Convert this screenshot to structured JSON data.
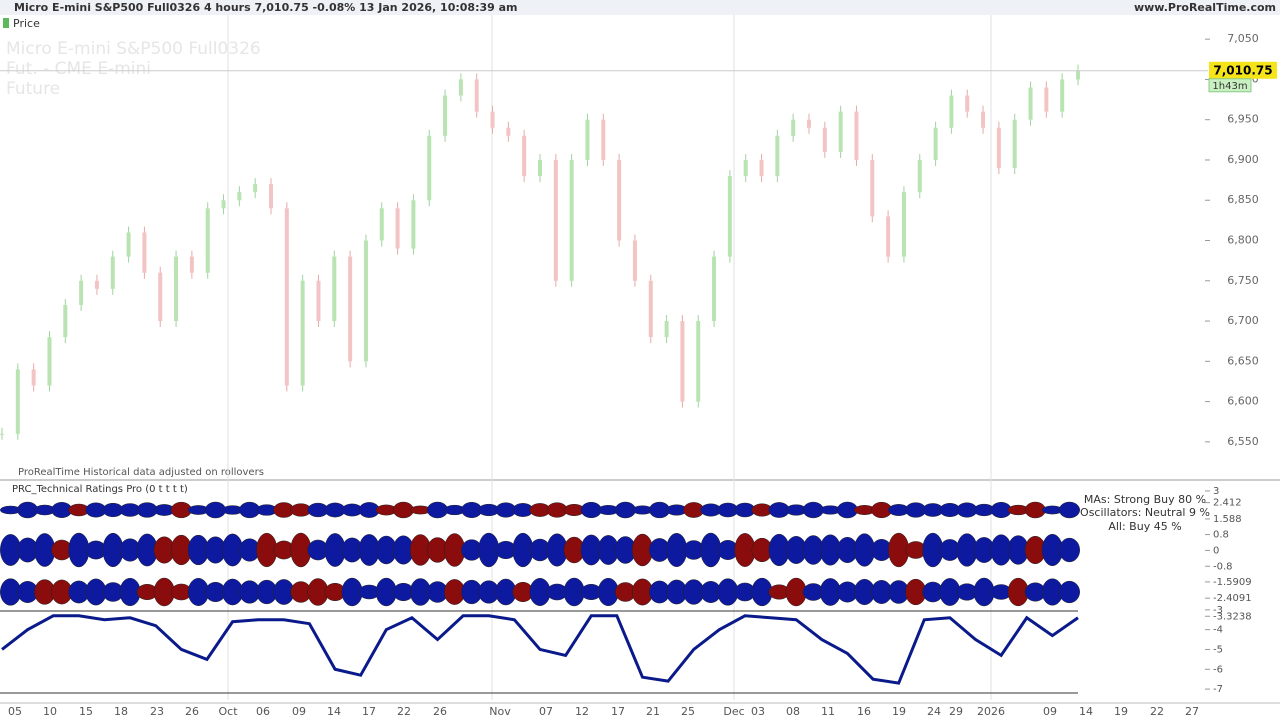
{
  "header": {
    "title": "Micro E-mini S&P500 Full0326 4 hours 7,010.75 -0.08% 13 Jan 2026, 10:08:39 am",
    "site": "www.ProRealTime.com"
  },
  "price_panel": {
    "legend": "Price",
    "watermark": [
      "Micro E-mini S&P500 Full0326",
      "Fut. - CME E-mini",
      "Future"
    ],
    "last_price": {
      "value": 7010.75,
      "label": "7,010.75"
    },
    "countdown": "1h43m",
    "note": "ProRealTime Historical data adjusted on rollovers",
    "ylim": [
      6525,
      7080
    ],
    "yticks": [
      {
        "value": 7050,
        "label": "7,050"
      },
      {
        "value": 7000,
        "label": "7,000"
      },
      {
        "value": 6950,
        "label": "6,950"
      },
      {
        "value": 6900,
        "label": "6,900"
      },
      {
        "value": 6850,
        "label": "6,850"
      },
      {
        "value": 6800,
        "label": "6,800"
      },
      {
        "value": 6750,
        "label": "6,750"
      },
      {
        "value": 6700,
        "label": "6,700"
      },
      {
        "value": 6650,
        "label": "6,650"
      },
      {
        "value": 6600,
        "label": "6,600"
      },
      {
        "value": 6550,
        "label": "6,550"
      }
    ],
    "values": [
      6560,
      6640,
      6620,
      6680,
      6720,
      6750,
      6740,
      6780,
      6810,
      6760,
      6700,
      6780,
      6760,
      6840,
      6850,
      6860,
      6870,
      6840,
      6620,
      6750,
      6700,
      6780,
      6650,
      6800,
      6840,
      6790,
      6850,
      6930,
      6980,
      7000,
      6960,
      6940,
      6930,
      6880,
      6900,
      6750,
      6900,
      6950,
      6900,
      6800,
      6750,
      6680,
      6700,
      6600,
      6700,
      6780,
      6880,
      6900,
      6880,
      6930,
      6950,
      6940,
      6910,
      6960,
      6900,
      6830,
      6780,
      6860,
      6900,
      6940,
      6980,
      6960,
      6940,
      6890,
      6950,
      6990,
      6960,
      7000,
      7011
    ]
  },
  "indicator_panel": {
    "title": "PRC_Technical Ratings Pro (0 t t t t)",
    "summary": [
      "MAs: Strong Buy 80 %",
      "Oscillators: Neutral 9 %",
      "All: Buy 45 %"
    ],
    "ylim": [
      -7.4,
      3.1
    ],
    "yticks": [
      3,
      2.412,
      1.588,
      0.8,
      0,
      -0.8,
      -1.5909,
      -2.4091,
      -3,
      -3.3238,
      -4,
      -5,
      -6,
      -7
    ],
    "values": [
      -5,
      -4,
      -3.3,
      -3.3,
      -3.5,
      -3.4,
      -3.8,
      -5,
      -5.5,
      -3.6,
      -3.5,
      -3.5,
      -3.7,
      -6,
      -6.3,
      -4,
      -3.4,
      -4.5,
      -3.3,
      -3.3,
      -3.5,
      -5,
      -5.3,
      -3.3,
      -3.3,
      -6.4,
      -6.6,
      -5,
      -4,
      -3.3,
      -3.4,
      -3.5,
      -4.5,
      -5.2,
      -6.5,
      -6.7,
      -3.5,
      -3.4,
      -4.5,
      -5.3,
      -3.4,
      -4.3,
      -3.4
    ]
  },
  "x_axis": {
    "labels": [
      "05",
      "10",
      "15",
      "18",
      "23",
      "26",
      "Oct",
      "06",
      "09",
      "14",
      "17",
      "22",
      "26",
      "Nov",
      "07",
      "12",
      "17",
      "21",
      "25",
      "Dec",
      "03",
      "08",
      "11",
      "16",
      "19",
      "24",
      "29",
      "2026",
      "09",
      "14",
      "19",
      "22",
      "27"
    ]
  }
}
